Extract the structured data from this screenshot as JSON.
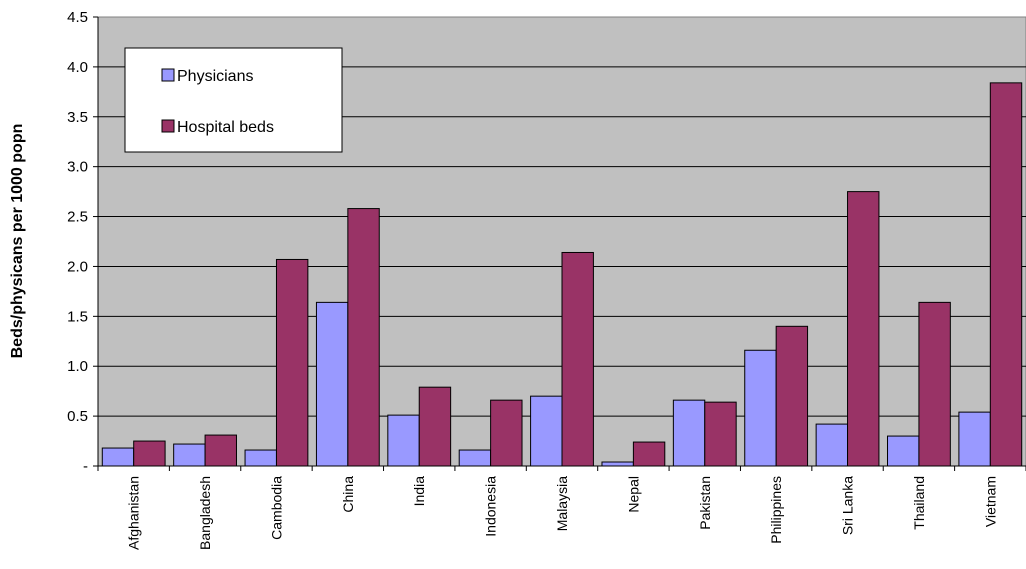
{
  "chart_data": {
    "type": "bar",
    "ylabel": "Beds/physicans per 1000 popn",
    "xlabel": "",
    "title": "",
    "ylim": [
      0,
      4.5
    ],
    "yticks": [
      0,
      0.5,
      1.0,
      1.5,
      2.0,
      2.5,
      3.0,
      3.5,
      4.0,
      4.5
    ],
    "ytick_labels": [
      "-",
      "0.5",
      "1.0",
      "1.5",
      "2.0",
      "2.5",
      "3.0",
      "3.5",
      "4.0",
      "4.5"
    ],
    "grid": true,
    "legend_position": "top-left",
    "categories": [
      "Afghanistan",
      "Bangladesh",
      "Cambodia",
      "China",
      "India",
      "Indonesia",
      "Malaysia",
      "Nepal",
      "Pakistan",
      "Philippines",
      "Sri Lanka",
      "Thailand",
      "Vietnam"
    ],
    "series": [
      {
        "name": "Physicians",
        "color": "#9999ff",
        "values": [
          0.18,
          0.22,
          0.16,
          1.64,
          0.51,
          0.16,
          0.7,
          0.04,
          0.66,
          1.16,
          0.42,
          0.3,
          0.54
        ]
      },
      {
        "name": "Hospital beds",
        "color": "#993366",
        "values": [
          0.25,
          0.31,
          2.07,
          2.58,
          0.79,
          0.66,
          2.14,
          0.24,
          0.64,
          1.4,
          2.75,
          1.64,
          3.84
        ]
      }
    ]
  },
  "colors": {
    "plot_background": "#c0c0c0",
    "gridline": "#000000"
  }
}
